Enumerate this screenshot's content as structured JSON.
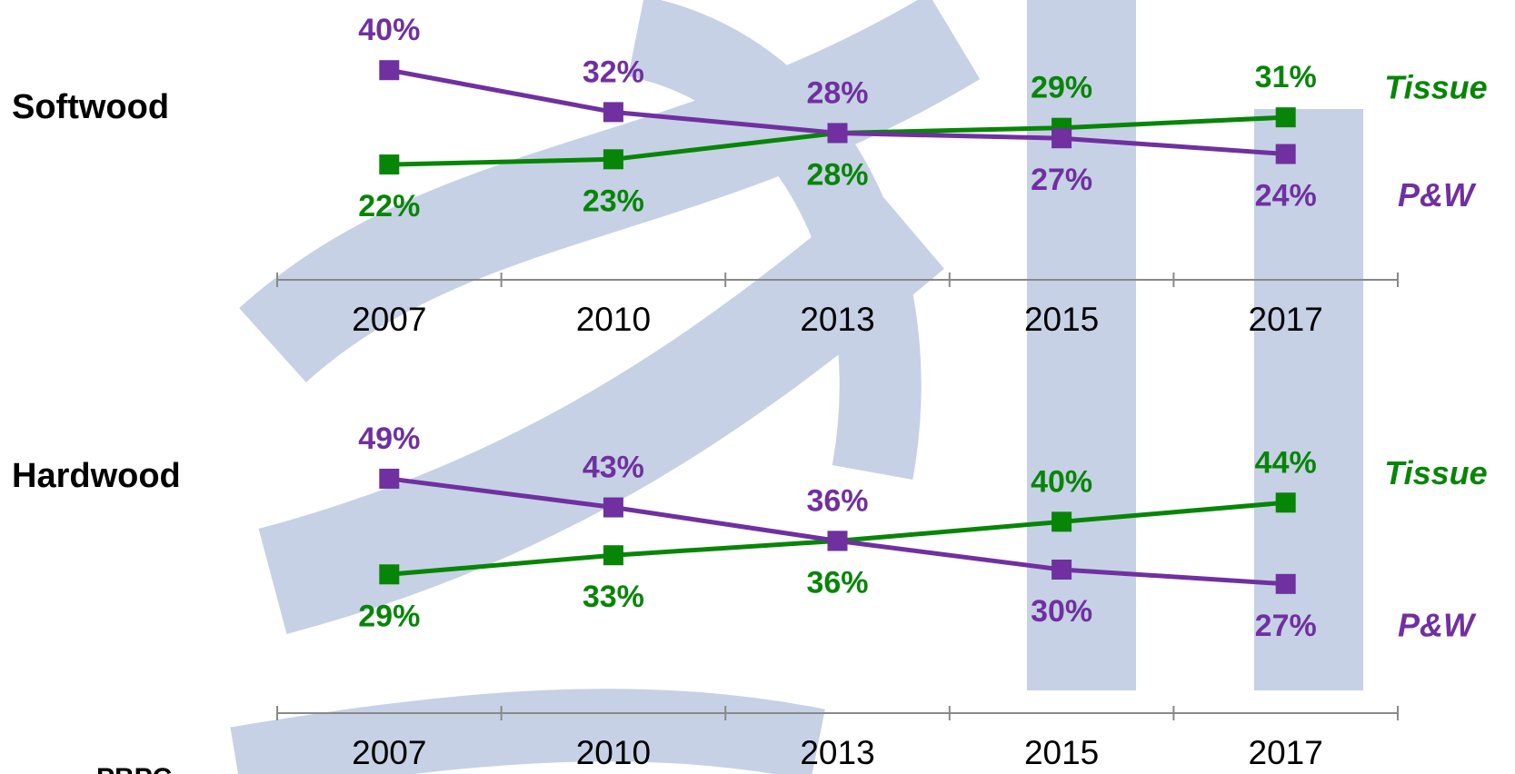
{
  "chart_data": [
    {
      "type": "line",
      "title": "Softwood",
      "categories": [
        "2007",
        "2010",
        "2013",
        "2015",
        "2017"
      ],
      "ylim": [
        0,
        52
      ],
      "series": [
        {
          "name": "Tissue",
          "color": "#078507",
          "values": [
            22,
            23,
            28,
            29,
            31
          ],
          "value_labels": [
            "22%",
            "23%",
            "28%",
            "29%",
            "31%"
          ]
        },
        {
          "name": "P&W",
          "color": "#7030a0",
          "values": [
            40,
            32,
            28,
            27,
            24
          ],
          "value_labels": [
            "40%",
            "32%",
            "28%",
            "27%",
            "24%"
          ]
        }
      ]
    },
    {
      "type": "line",
      "title": "Hardwood",
      "categories": [
        "2007",
        "2010",
        "2013",
        "2015",
        "2017"
      ],
      "ylim": [
        0,
        60
      ],
      "series": [
        {
          "name": "Tissue",
          "color": "#078507",
          "values": [
            29,
            33,
            36,
            40,
            44
          ],
          "value_labels": [
            "29%",
            "33%",
            "36%",
            "40%",
            "44%"
          ]
        },
        {
          "name": "P&W",
          "color": "#7030a0",
          "values": [
            49,
            43,
            36,
            30,
            27
          ],
          "value_labels": [
            "49%",
            "43%",
            "36%",
            "30%",
            "27%"
          ]
        }
      ]
    }
  ],
  "footer": "PBPC"
}
